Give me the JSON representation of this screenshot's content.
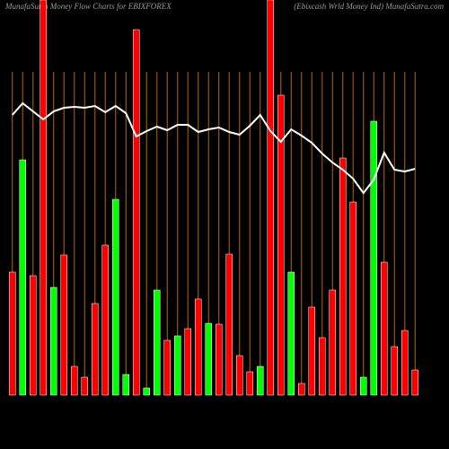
{
  "chart_data": {
    "type": "bar",
    "title": "MunafaSutra  Money Flow  Charts for EBIXFOREX",
    "subtitle": "(Ebixcash Wrld Money Ind) MunafaSutra.com",
    "values": [
      137,
      262,
      133,
      440,
      120,
      156,
      32,
      20,
      102,
      167,
      218,
      23,
      407,
      8,
      117,
      61,
      66,
      74,
      107,
      80,
      79,
      157,
      44,
      26,
      32,
      440,
      334,
      137,
      13,
      98,
      64,
      117,
      264,
      215,
      20,
      305,
      148,
      54,
      72,
      28
    ],
    "colors": [
      "#ff0000",
      "#00ff00",
      "#ff0000",
      "#ff0000",
      "#00ff00",
      "#ff0000",
      "#ff0000",
      "#ff0000",
      "#ff0000",
      "#ff0000",
      "#00ff00",
      "#00ff00",
      "#ff0000",
      "#00ff00",
      "#00ff00",
      "#ff0000",
      "#00ff00",
      "#ff0000",
      "#ff0000",
      "#00ff00",
      "#ff0000",
      "#ff0000",
      "#ff0000",
      "#ff0000",
      "#00ff00",
      "#ff0000",
      "#ff0000",
      "#00ff00",
      "#ff0000",
      "#ff0000",
      "#ff0000",
      "#ff0000",
      "#ff0000",
      "#ff0000",
      "#00ff00",
      "#00ff00",
      "#ff0000",
      "#ff0000",
      "#ff0000",
      "#ff0000"
    ],
    "line_values": [
      312,
      325,
      316,
      307,
      316,
      320,
      321,
      320,
      322,
      315,
      322,
      314,
      288,
      294,
      299,
      295,
      301,
      301,
      293,
      296,
      298,
      293,
      290,
      300,
      312,
      294,
      282,
      296,
      289,
      281,
      269,
      259,
      251,
      241,
      225,
      240,
      270,
      251,
      249,
      252
    ],
    "line_color": "#ffffff",
    "grid_color": "#b36b00",
    "ylim": [
      0,
      440
    ]
  }
}
